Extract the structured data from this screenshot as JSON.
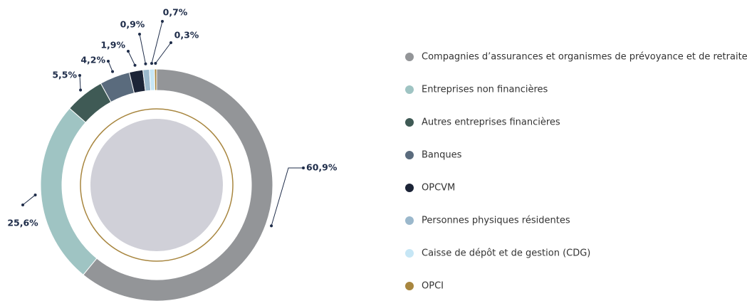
{
  "chart_data": {
    "type": "donut",
    "categories": [
      "Compagnies d’assurances et organismes de prévoyance et de retraite",
      "Entreprises non financières",
      "Autres entreprises financières",
      "Banques",
      "OPCVM",
      "Personnes physiques résidentes",
      "Caisse de dépôt et de gestion (CDG)",
      "OPCI"
    ],
    "values": [
      60.9,
      25.6,
      5.5,
      4.2,
      1.9,
      0.9,
      0.7,
      0.3
    ],
    "value_labels": [
      "60,9%",
      "25,6%",
      "5,5%",
      "4,2%",
      "1,9%",
      "0,9%",
      "0,7%",
      "0,3%"
    ],
    "colors": [
      "#939598",
      "#9fc4c3",
      "#3f5a55",
      "#5a6b7d",
      "#1c2437",
      "#9bb8cc",
      "#c6e6f5",
      "#a8863f"
    ],
    "legend": "right"
  }
}
